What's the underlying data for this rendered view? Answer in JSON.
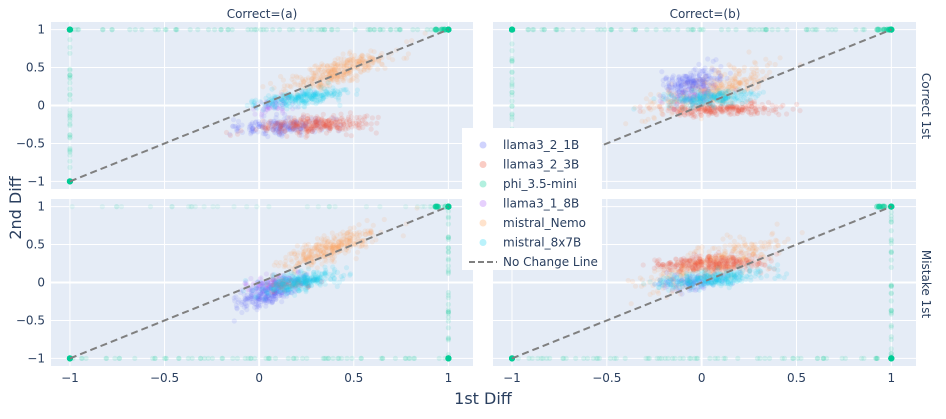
{
  "chart_data": {
    "type": "scatter",
    "xlabel": "1st Diff",
    "ylabel": "2nd Diff",
    "xlim": [
      -1.1,
      1.13
    ],
    "ylim": [
      -1.1,
      1.1
    ],
    "x_ticks": [
      -1,
      -0.5,
      0,
      0.5,
      1
    ],
    "x_tick_labels": [
      "−1",
      "−0.5",
      "0",
      "0.5",
      "1"
    ],
    "y_ticks": [
      -1,
      -0.5,
      0,
      0.5,
      1
    ],
    "y_tick_labels": [
      "−1",
      "−0.5",
      "0",
      "0.5",
      "1"
    ],
    "grid": true,
    "column_titles": [
      "Correct=(a)",
      "Correct=(b)"
    ],
    "row_titles": [
      "Correct 1st",
      "Mistake 1st"
    ],
    "legend_position": "center",
    "reference_line": {
      "name": "No Change Line",
      "x": [
        -1,
        1
      ],
      "y": [
        -1,
        1
      ],
      "style": "dashed",
      "color": "#808080"
    },
    "series": [
      {
        "name": "llama3_2_1B",
        "color": "#636efa"
      },
      {
        "name": "llama3_2_3B",
        "color": "#ef553b"
      },
      {
        "name": "phi_3.5-mini",
        "color": "#00cc96"
      },
      {
        "name": "llama3_1_8B",
        "color": "#ab63fa"
      },
      {
        "name": "mistral_Nemo",
        "color": "#ffa15a"
      },
      {
        "name": "mistral_8x7B",
        "color": "#19d3f3"
      }
    ],
    "panels": [
      {
        "col": 0,
        "row": 0,
        "title": "Correct=(a) | Correct 1st",
        "clusters": [
          {
            "series": "mistral_Nemo",
            "cx": 0.42,
            "cy": 0.45,
            "sx": 0.12,
            "sy": 0.12,
            "corr": 0.75,
            "n": 340
          },
          {
            "series": "llama3_2_1B",
            "cx": 0.1,
            "cy": -0.28,
            "sx": 0.12,
            "sy": 0.06,
            "corr": 0.2,
            "n": 200
          },
          {
            "series": "llama3_2_3B",
            "cx": 0.3,
            "cy": -0.25,
            "sx": 0.14,
            "sy": 0.06,
            "corr": 0.2,
            "n": 280
          },
          {
            "series": "llama3_1_8B",
            "cx": 0.08,
            "cy": 0.0,
            "sx": 0.06,
            "sy": 0.06,
            "corr": 0.5,
            "n": 60
          },
          {
            "series": "mistral_8x7B",
            "cx": 0.22,
            "cy": 0.1,
            "sx": 0.12,
            "sy": 0.06,
            "corr": 0.6,
            "n": 260
          }
        ]
      },
      {
        "col": 1,
        "row": 0,
        "title": "Correct=(b) | Correct 1st",
        "clusters": [
          {
            "series": "mistral_Nemo",
            "cx": 0.05,
            "cy": 0.2,
            "sx": 0.15,
            "sy": 0.15,
            "corr": 0.7,
            "n": 320
          },
          {
            "series": "llama3_2_3B",
            "cx": 0.1,
            "cy": -0.05,
            "sx": 0.16,
            "sy": 0.04,
            "corr": 0.1,
            "n": 260
          },
          {
            "series": "llama3_2_1B",
            "cx": -0.05,
            "cy": 0.3,
            "sx": 0.08,
            "sy": 0.1,
            "corr": 0.4,
            "n": 220
          },
          {
            "series": "llama3_1_8B",
            "cx": -0.05,
            "cy": 0.1,
            "sx": 0.06,
            "sy": 0.05,
            "corr": 0.3,
            "n": 60
          },
          {
            "series": "mistral_8x7B",
            "cx": 0.05,
            "cy": 0.1,
            "sx": 0.12,
            "sy": 0.05,
            "corr": 0.4,
            "n": 240
          }
        ]
      },
      {
        "col": 0,
        "row": 1,
        "title": "Correct=(a) | Mistake 1st",
        "clusters": [
          {
            "series": "mistral_Nemo",
            "cx": 0.38,
            "cy": 0.45,
            "sx": 0.12,
            "sy": 0.14,
            "corr": 0.8,
            "n": 320
          },
          {
            "series": "llama3_2_1B",
            "cx": 0.05,
            "cy": -0.15,
            "sx": 0.08,
            "sy": 0.1,
            "corr": 0.7,
            "n": 240
          },
          {
            "series": "llama3_1_8B",
            "cx": 0.1,
            "cy": 0.0,
            "sx": 0.08,
            "sy": 0.05,
            "corr": 0.5,
            "n": 150
          },
          {
            "series": "llama3_2_3B",
            "cx": 0.15,
            "cy": -0.02,
            "sx": 0.08,
            "sy": 0.05,
            "corr": 0.5,
            "n": 60
          },
          {
            "series": "mistral_8x7B",
            "cx": 0.2,
            "cy": 0.0,
            "sx": 0.1,
            "sy": 0.07,
            "corr": 0.6,
            "n": 300
          }
        ]
      },
      {
        "col": 1,
        "row": 1,
        "title": "Correct=(b) | Mistake 1st",
        "clusters": [
          {
            "series": "mistral_Nemo",
            "cx": 0.05,
            "cy": 0.25,
            "sx": 0.18,
            "sy": 0.17,
            "corr": 0.75,
            "n": 340
          },
          {
            "series": "llama3_2_3B",
            "cx": 0.05,
            "cy": 0.25,
            "sx": 0.14,
            "sy": 0.05,
            "corr": 0.2,
            "n": 300
          },
          {
            "series": "llama3_2_1B",
            "cx": -0.05,
            "cy": 0.0,
            "sx": 0.1,
            "sy": 0.05,
            "corr": 0.3,
            "n": 120
          },
          {
            "series": "mistral_8x7B",
            "cx": 0.05,
            "cy": 0.05,
            "sx": 0.14,
            "sy": 0.06,
            "corr": 0.5,
            "n": 300
          }
        ]
      }
    ],
    "phi_edge_pattern": {
      "series": "phi_3.5-mini",
      "top": [
        [
          0,
          0,
          0
        ],
        [
          1,
          0,
          0
        ],
        [
          0,
          1,
          0
        ],
        [
          1,
          1,
          1
        ]
      ],
      "note_indices": "panels share pattern: dense at corners (-1,-1),(-1,1),(1,1),(1,-1)"
    }
  }
}
